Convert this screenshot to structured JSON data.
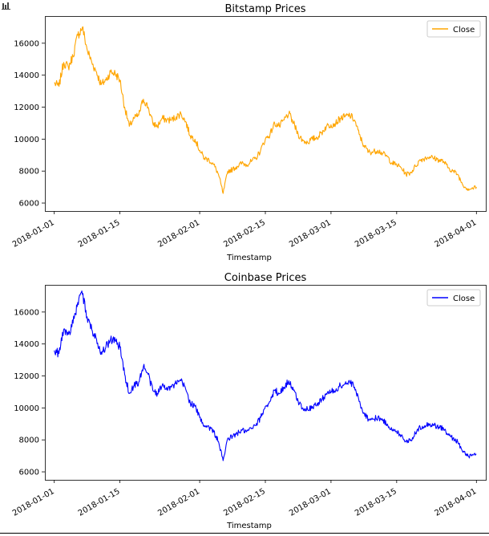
{
  "chart_data": [
    {
      "type": "line",
      "title": "Bitstamp Prices",
      "xlabel": "Timestamp",
      "ylabel": "",
      "legend": {
        "entries": [
          "Close"
        ],
        "placement": "top-right"
      },
      "grid": false,
      "color": "#FFA500",
      "xlim": [
        "2017-12-30",
        "2018-04-03"
      ],
      "ylim": [
        5500,
        17700
      ],
      "x_ticks": [
        "2018-01-01",
        "2018-01-15",
        "2018-02-01",
        "2018-02-15",
        "2018-03-01",
        "2018-03-15",
        "2018-04-01"
      ],
      "y_ticks": [
        6000,
        8000,
        10000,
        12000,
        14000,
        16000
      ],
      "series": [
        {
          "name": "Close",
          "x": [
            "2018-01-01",
            "2018-01-02",
            "2018-01-03",
            "2018-01-04",
            "2018-01-05",
            "2018-01-06",
            "2018-01-07",
            "2018-01-08",
            "2018-01-09",
            "2018-01-10",
            "2018-01-11",
            "2018-01-12",
            "2018-01-13",
            "2018-01-14",
            "2018-01-15",
            "2018-01-16",
            "2018-01-17",
            "2018-01-18",
            "2018-01-19",
            "2018-01-20",
            "2018-01-21",
            "2018-01-22",
            "2018-01-23",
            "2018-01-24",
            "2018-01-25",
            "2018-01-26",
            "2018-01-27",
            "2018-01-28",
            "2018-01-29",
            "2018-01-30",
            "2018-01-31",
            "2018-02-01",
            "2018-02-02",
            "2018-02-03",
            "2018-02-04",
            "2018-02-05",
            "2018-02-06",
            "2018-02-07",
            "2018-02-08",
            "2018-02-09",
            "2018-02-10",
            "2018-02-11",
            "2018-02-12",
            "2018-02-13",
            "2018-02-14",
            "2018-02-15",
            "2018-02-16",
            "2018-02-17",
            "2018-02-18",
            "2018-02-19",
            "2018-02-20",
            "2018-02-21",
            "2018-02-22",
            "2018-02-23",
            "2018-02-24",
            "2018-02-25",
            "2018-02-26",
            "2018-02-27",
            "2018-02-28",
            "2018-03-01",
            "2018-03-02",
            "2018-03-03",
            "2018-03-04",
            "2018-03-05",
            "2018-03-06",
            "2018-03-07",
            "2018-03-08",
            "2018-03-09",
            "2018-03-10",
            "2018-03-11",
            "2018-03-12",
            "2018-03-13",
            "2018-03-14",
            "2018-03-15",
            "2018-03-16",
            "2018-03-17",
            "2018-03-18",
            "2018-03-19",
            "2018-03-20",
            "2018-03-21",
            "2018-03-22",
            "2018-03-23",
            "2018-03-24",
            "2018-03-25",
            "2018-03-26",
            "2018-03-27",
            "2018-03-28",
            "2018-03-29",
            "2018-03-30",
            "2018-03-31",
            "2018-04-01"
          ],
          "values": [
            13500,
            13300,
            14800,
            14500,
            15200,
            16500,
            17000,
            15600,
            14800,
            14200,
            13400,
            13700,
            14200,
            14100,
            13700,
            12000,
            10800,
            11300,
            11500,
            12500,
            12000,
            11000,
            10800,
            11300,
            11200,
            11200,
            11400,
            11600,
            11100,
            10200,
            10000,
            9300,
            8800,
            8700,
            8400,
            7800,
            6600,
            8000,
            8100,
            8300,
            8500,
            8400,
            8600,
            8800,
            9300,
            10000,
            10300,
            11000,
            10800,
            11200,
            11600,
            11000,
            10300,
            9900,
            9800,
            10000,
            10100,
            10400,
            10800,
            10900,
            11000,
            11300,
            11400,
            11500,
            11200,
            10300,
            9600,
            9200,
            9200,
            9300,
            9100,
            8900,
            8500,
            8400,
            8200,
            7800,
            7900,
            8300,
            8700,
            8800,
            8900,
            8800,
            8700,
            8600,
            8200,
            8000,
            7800,
            7200,
            6900,
            6900,
            7000
          ]
        }
      ]
    },
    {
      "type": "line",
      "title": "Coinbase Prices",
      "xlabel": "Timestamp",
      "ylabel": "",
      "legend": {
        "entries": [
          "Close"
        ],
        "placement": "top-right"
      },
      "grid": false,
      "color": "#0000FF",
      "xlim": [
        "2017-12-30",
        "2018-04-03"
      ],
      "ylim": [
        5500,
        17700
      ],
      "x_ticks": [
        "2018-01-01",
        "2018-01-15",
        "2018-02-01",
        "2018-02-15",
        "2018-03-01",
        "2018-03-15",
        "2018-04-01"
      ],
      "y_ticks": [
        6000,
        8000,
        10000,
        12000,
        14000,
        16000
      ],
      "series": [
        {
          "name": "Close",
          "x": [
            "2018-01-01",
            "2018-01-02",
            "2018-01-03",
            "2018-01-04",
            "2018-01-05",
            "2018-01-06",
            "2018-01-07",
            "2018-01-08",
            "2018-01-09",
            "2018-01-10",
            "2018-01-11",
            "2018-01-12",
            "2018-01-13",
            "2018-01-14",
            "2018-01-15",
            "2018-01-16",
            "2018-01-17",
            "2018-01-18",
            "2018-01-19",
            "2018-01-20",
            "2018-01-21",
            "2018-01-22",
            "2018-01-23",
            "2018-01-24",
            "2018-01-25",
            "2018-01-26",
            "2018-01-27",
            "2018-01-28",
            "2018-01-29",
            "2018-01-30",
            "2018-01-31",
            "2018-02-01",
            "2018-02-02",
            "2018-02-03",
            "2018-02-04",
            "2018-02-05",
            "2018-02-06",
            "2018-02-07",
            "2018-02-08",
            "2018-02-09",
            "2018-02-10",
            "2018-02-11",
            "2018-02-12",
            "2018-02-13",
            "2018-02-14",
            "2018-02-15",
            "2018-02-16",
            "2018-02-17",
            "2018-02-18",
            "2018-02-19",
            "2018-02-20",
            "2018-02-21",
            "2018-02-22",
            "2018-02-23",
            "2018-02-24",
            "2018-02-25",
            "2018-02-26",
            "2018-02-27",
            "2018-02-28",
            "2018-03-01",
            "2018-03-02",
            "2018-03-03",
            "2018-03-04",
            "2018-03-05",
            "2018-03-06",
            "2018-03-07",
            "2018-03-08",
            "2018-03-09",
            "2018-03-10",
            "2018-03-11",
            "2018-03-12",
            "2018-03-13",
            "2018-03-14",
            "2018-03-15",
            "2018-03-16",
            "2018-03-17",
            "2018-03-18",
            "2018-03-19",
            "2018-03-20",
            "2018-03-21",
            "2018-03-22",
            "2018-03-23",
            "2018-03-24",
            "2018-03-25",
            "2018-03-26",
            "2018-03-27",
            "2018-03-28",
            "2018-03-29",
            "2018-03-30",
            "2018-03-31",
            "2018-04-01"
          ],
          "values": [
            13600,
            13400,
            14900,
            14600,
            15300,
            16600,
            17100,
            15700,
            14900,
            14300,
            13500,
            13800,
            14300,
            14200,
            13800,
            12100,
            10900,
            11400,
            11600,
            12600,
            12100,
            11100,
            10900,
            11400,
            11300,
            11300,
            11500,
            11700,
            11200,
            10300,
            10100,
            9400,
            8900,
            8800,
            8500,
            7900,
            6700,
            8100,
            8200,
            8400,
            8600,
            8500,
            8700,
            8900,
            9400,
            10100,
            10400,
            11100,
            10900,
            11300,
            11700,
            11100,
            10400,
            10000,
            9900,
            10100,
            10200,
            10500,
            10900,
            11000,
            11100,
            11400,
            11500,
            11600,
            11300,
            10400,
            9700,
            9300,
            9300,
            9400,
            9200,
            9000,
            8600,
            8500,
            8300,
            7900,
            8000,
            8400,
            8800,
            8900,
            9000,
            8900,
            8800,
            8700,
            8300,
            8100,
            7900,
            7300,
            7000,
            7000,
            7100
          ]
        }
      ]
    }
  ]
}
